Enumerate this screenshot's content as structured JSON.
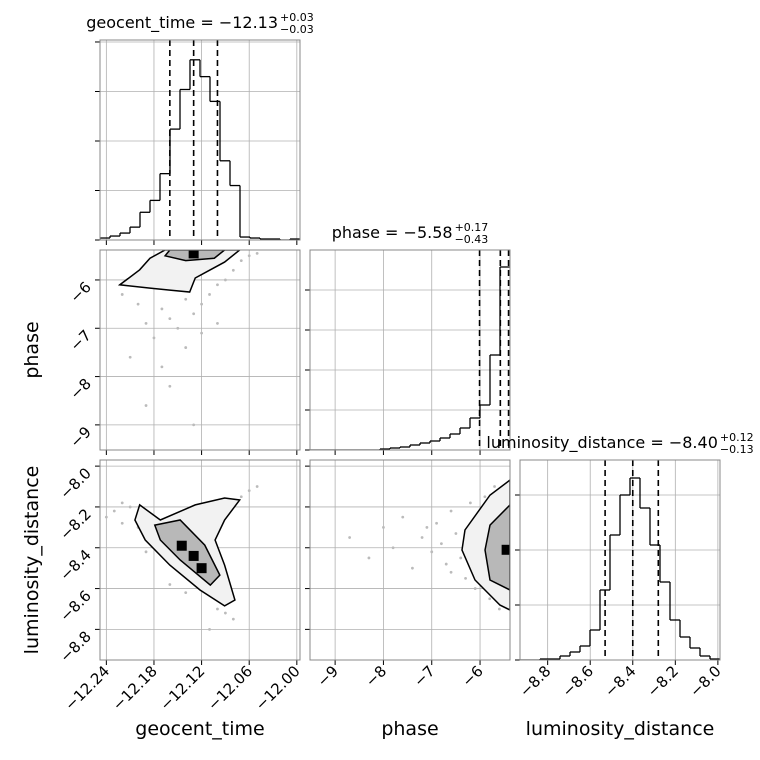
{
  "chart_data": [
    {
      "type": "histogram",
      "title": "geocent_time = −12.13",
      "title_sup": "+0.03",
      "title_sub": "−0.03",
      "bins": [
        -12.248,
        -12.2354,
        -12.2228,
        -12.2102,
        -12.1976,
        -12.185,
        -12.1724,
        -12.1598,
        -12.1472,
        -12.1346,
        -12.122,
        -12.1094,
        -12.0968,
        -12.0842,
        -12.0716,
        -12.059,
        -12.0464,
        -12.0338,
        -12.0212,
        -12.0086,
        -11.996
      ],
      "counts": [
        2,
        4,
        7,
        13,
        28,
        40,
        67,
        112,
        152,
        182,
        165,
        140,
        80,
        55,
        3,
        2,
        1,
        1,
        0,
        1
      ],
      "quantiles": [
        -12.16,
        -12.13,
        -12.1
      ],
      "xlim": [
        -12.248,
        -11.996
      ],
      "ylim": [
        0,
        202
      ],
      "xgrid": [
        -12.24,
        -12.18,
        -12.12,
        -12.06,
        -12.0
      ],
      "ygrid": [
        0,
        50,
        100,
        150,
        200
      ],
      "color": "#000000"
    },
    {
      "type": "scatter",
      "ylabel": "phase",
      "x": [
        -12.22,
        -12.2,
        -12.19,
        -12.18,
        -12.17,
        -12.16,
        -12.15,
        -12.14,
        -12.13,
        -12.12,
        -12.11,
        -12.1,
        -12.09,
        -12.08,
        -12.07,
        -12.06,
        -12.05,
        -12.21,
        -12.17,
        -12.14,
        -12.12,
        -12.1,
        -12.16,
        -12.19,
        -12.13
      ],
      "y": [
        -6.3,
        -6.5,
        -6.9,
        -7.2,
        -6.6,
        -6.8,
        -7.0,
        -6.4,
        -6.7,
        -6.5,
        -6.3,
        -6.1,
        -6.0,
        -5.8,
        -5.6,
        -5.5,
        -5.45,
        -7.6,
        -7.8,
        -7.4,
        -7.1,
        -6.9,
        -8.2,
        -8.6,
        -9.0
      ],
      "contours": [
        [
          [
            -12.223,
            -6.1
          ],
          [
            -12.198,
            -5.79
          ],
          [
            -12.185,
            -5.55
          ],
          [
            -12.166,
            -5.38
          ],
          [
            -12.072,
            -5.38
          ],
          [
            -12.091,
            -5.63
          ],
          [
            -12.109,
            -5.79
          ],
          [
            -12.128,
            -5.96
          ],
          [
            -12.135,
            -6.25
          ],
          [
            -12.16,
            -6.21
          ],
          [
            -12.185,
            -6.17
          ]
        ],
        [
          [
            -12.166,
            -5.5
          ],
          [
            -12.16,
            -5.38
          ],
          [
            -12.091,
            -5.38
          ],
          [
            -12.104,
            -5.55
          ],
          [
            -12.14,
            -5.6
          ]
        ]
      ],
      "contour_fills": [
        "#f2f2f2",
        "#b8b8b8"
      ],
      "peaks_x": [
        -12.13
      ],
      "peaks_y": [
        -5.45
      ],
      "point_color": "#bbbbbb",
      "xlim": [
        -12.248,
        -11.996
      ],
      "ylim": [
        -9.52,
        -5.38
      ],
      "xgrid": [
        -12.24,
        -12.18,
        -12.12,
        -12.06,
        -12.0
      ],
      "yticks": [
        {
          "value": -6,
          "label": "−6"
        },
        {
          "value": -7,
          "label": "−7"
        },
        {
          "value": -8,
          "label": "−8"
        },
        {
          "value": -9,
          "label": "−9"
        }
      ]
    },
    {
      "type": "histogram",
      "title": "phase = −5.58",
      "title_sup": "+0.17",
      "title_sub": "−0.43",
      "bins": [
        -9.52,
        -9.313,
        -9.106,
        -8.899,
        -8.692,
        -8.485,
        -8.278,
        -8.071,
        -7.864,
        -7.657,
        -7.45,
        -7.243,
        -7.036,
        -6.829,
        -6.622,
        -6.415,
        -6.208,
        -6.001,
        -5.794,
        -5.587,
        -5.38
      ],
      "counts": [
        0,
        0,
        0,
        0,
        0,
        0,
        0,
        1,
        2,
        3,
        5,
        7,
        9,
        12,
        16,
        22,
        32,
        45,
        95,
        183
      ],
      "quantiles": [
        -6.01,
        -5.58,
        -5.41
      ],
      "xlim": [
        -9.52,
        -5.38
      ],
      "ylim": [
        0,
        200
      ],
      "xgrid": [
        -9,
        -8,
        -7,
        -6
      ],
      "ygrid": [
        0,
        40,
        80,
        120,
        160
      ],
      "color": "#000000"
    },
    {
      "type": "scatter",
      "xlabel": "geocent_time",
      "ylabel": "luminosity_distance",
      "x": [
        -12.24,
        -12.23,
        -12.22,
        -12.21,
        -12.2,
        -12.19,
        -12.18,
        -12.17,
        -12.16,
        -12.15,
        -12.14,
        -12.13,
        -12.12,
        -12.11,
        -12.1,
        -12.09,
        -12.08,
        -12.07,
        -12.06,
        -12.05,
        -12.22,
        -12.19,
        -12.16,
        -12.14,
        -12.11
      ],
      "y": [
        -8.25,
        -8.22,
        -8.28,
        -8.2,
        -8.3,
        -8.35,
        -8.32,
        -8.4,
        -8.45,
        -8.5,
        -8.48,
        -8.55,
        -8.6,
        -8.62,
        -8.7,
        -8.72,
        -8.75,
        -8.15,
        -8.12,
        -8.1,
        -8.18,
        -8.42,
        -8.58,
        -8.62,
        -8.8
      ],
      "contours": [
        [
          [
            -12.198,
            -8.19
          ],
          [
            -12.172,
            -8.264
          ],
          [
            -12.128,
            -8.19
          ],
          [
            -12.091,
            -8.156
          ],
          [
            -12.072,
            -8.166
          ],
          [
            -12.091,
            -8.264
          ],
          [
            -12.103,
            -8.362
          ],
          [
            -12.091,
            -8.485
          ],
          [
            -12.078,
            -8.656
          ],
          [
            -12.091,
            -8.685
          ],
          [
            -12.122,
            -8.607
          ],
          [
            -12.16,
            -8.485
          ],
          [
            -12.191,
            -8.362
          ],
          [
            -12.204,
            -8.264
          ]
        ],
        [
          [
            -12.179,
            -8.289
          ],
          [
            -12.147,
            -8.264
          ],
          [
            -12.116,
            -8.387
          ],
          [
            -12.097,
            -8.534
          ],
          [
            -12.109,
            -8.583
          ],
          [
            -12.147,
            -8.46
          ],
          [
            -12.172,
            -8.362
          ]
        ]
      ],
      "contour_fills": [
        "#f2f2f2",
        "#b8b8b8"
      ],
      "peaks_x": [
        -12.145,
        -12.13,
        -12.12
      ],
      "peaks_y": [
        -8.39,
        -8.44,
        -8.5
      ],
      "point_color": "#bbbbbb",
      "xlim": [
        -12.248,
        -11.996
      ],
      "ylim": [
        -8.95,
        -7.97
      ],
      "xticks": [
        {
          "value": -12.24,
          "label": "−12.24"
        },
        {
          "value": -12.18,
          "label": "−12.18"
        },
        {
          "value": -12.12,
          "label": "−12.12"
        },
        {
          "value": -12.06,
          "label": "−12.06"
        },
        {
          "value": -12.0,
          "label": "−12.00"
        }
      ],
      "yticks": [
        {
          "value": -8.0,
          "label": "−8.0"
        },
        {
          "value": -8.2,
          "label": "−8.2"
        },
        {
          "value": -8.4,
          "label": "−8.4"
        },
        {
          "value": -8.6,
          "label": "−8.6"
        },
        {
          "value": -8.8,
          "label": "−8.8"
        }
      ]
    },
    {
      "type": "scatter",
      "xlabel": "phase",
      "x": [
        -8.7,
        -8.3,
        -8.0,
        -7.8,
        -7.6,
        -7.4,
        -7.2,
        -7.0,
        -6.9,
        -6.8,
        -6.7,
        -6.6,
        -6.5,
        -6.4,
        -6.3,
        -6.2,
        -6.1,
        -6.0,
        -5.9,
        -5.8,
        -5.7,
        -5.6,
        -7.1,
        -6.6,
        -6.2
      ],
      "y": [
        -8.35,
        -8.45,
        -8.3,
        -8.4,
        -8.25,
        -8.5,
        -8.35,
        -8.42,
        -8.28,
        -8.38,
        -8.48,
        -8.22,
        -8.33,
        -8.45,
        -8.55,
        -8.18,
        -8.6,
        -8.4,
        -8.15,
        -8.65,
        -8.1,
        -8.7,
        -8.3,
        -8.52,
        -8.35
      ],
      "contours": [
        [
          [
            -5.38,
            -8.068
          ],
          [
            -5.794,
            -8.142
          ],
          [
            -6.312,
            -8.313
          ],
          [
            -6.374,
            -8.411
          ],
          [
            -6.104,
            -8.558
          ],
          [
            -5.587,
            -8.681
          ],
          [
            -5.38,
            -8.705
          ]
        ],
        [
          [
            -5.38,
            -8.19
          ],
          [
            -5.794,
            -8.289
          ],
          [
            -5.897,
            -8.411
          ],
          [
            -5.794,
            -8.558
          ],
          [
            -5.38,
            -8.607
          ]
        ]
      ],
      "contour_fills": [
        "#f2f2f2",
        "#b8b8b8"
      ],
      "peaks_x": [
        -5.45
      ],
      "peaks_y": [
        -8.41
      ],
      "point_color": "#bbbbbb",
      "xlim": [
        -9.52,
        -5.38
      ],
      "ylim": [
        -8.95,
        -7.97
      ],
      "xticks": [
        {
          "value": -9,
          "label": "−9"
        },
        {
          "value": -8,
          "label": "−8"
        },
        {
          "value": -7,
          "label": "−7"
        },
        {
          "value": -6,
          "label": "−6"
        }
      ],
      "ygrid": [
        -8.0,
        -8.2,
        -8.4,
        -8.6,
        -8.8
      ]
    },
    {
      "type": "histogram",
      "title": "luminosity_distance = −8.40",
      "title_sup": "+0.12",
      "title_sub": "−0.13",
      "xlabel": "luminosity_distance",
      "bins": [
        -8.93,
        -8.883,
        -8.836,
        -8.789,
        -8.742,
        -8.695,
        -8.648,
        -8.601,
        -8.554,
        -8.507,
        -8.46,
        -8.413,
        -8.366,
        -8.319,
        -8.272,
        -8.225,
        -8.178,
        -8.131,
        -8.084,
        -8.037,
        -7.99
      ],
      "counts": [
        0,
        0,
        1,
        1,
        4,
        8,
        14,
        30,
        70,
        125,
        165,
        182,
        152,
        115,
        78,
        40,
        23,
        12,
        4,
        1
      ],
      "quantiles": [
        -8.53,
        -8.4,
        -8.28
      ],
      "xlim": [
        -8.93,
        -7.99
      ],
      "ylim": [
        0,
        200
      ],
      "ygrid": [
        0,
        55,
        110,
        165
      ],
      "xticks": [
        {
          "value": -8.8,
          "label": "−8.8"
        },
        {
          "value": -8.6,
          "label": "−8.6"
        },
        {
          "value": -8.4,
          "label": "−8.4"
        },
        {
          "value": -8.2,
          "label": "−8.2"
        },
        {
          "value": -8.0,
          "label": "−8.0"
        }
      ],
      "color": "#000000"
    }
  ]
}
